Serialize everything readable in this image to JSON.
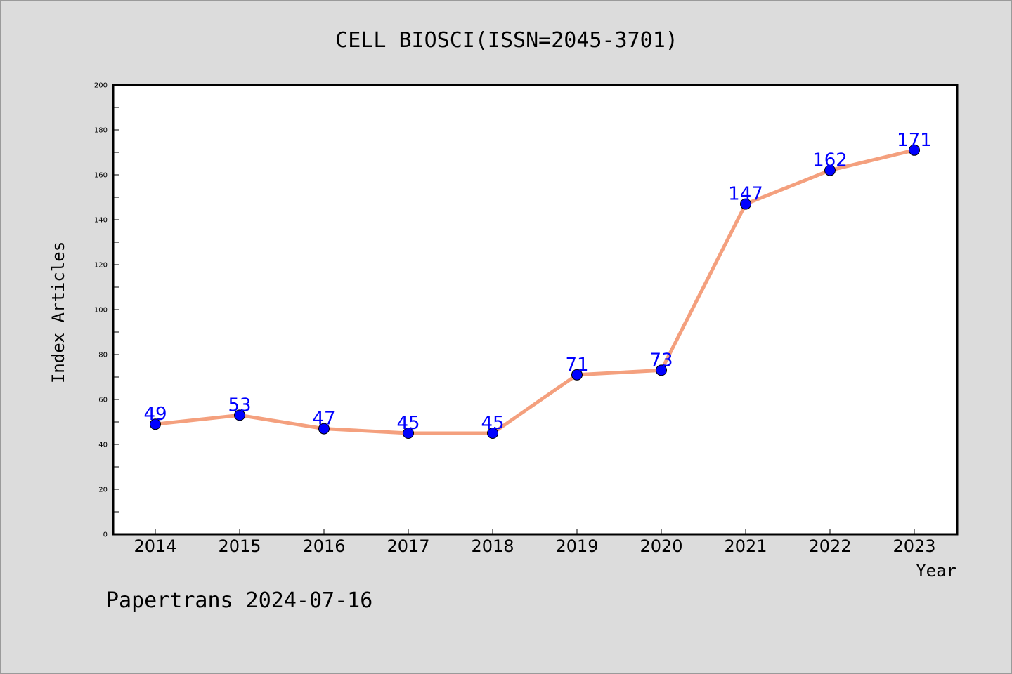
{
  "chart_data": {
    "type": "line",
    "title": "CELL BIOSCI(ISSN=2045-3701)",
    "xlabel": "Year",
    "ylabel": "Index Articles",
    "categories": [
      "2014",
      "2015",
      "2016",
      "2017",
      "2018",
      "2019",
      "2020",
      "2021",
      "2022",
      "2023"
    ],
    "values": [
      49,
      53,
      47,
      45,
      45,
      71,
      73,
      147,
      162,
      171
    ],
    "ylim": [
      0,
      200
    ],
    "yticks": [
      0,
      20,
      40,
      60,
      80,
      100,
      120,
      140,
      160,
      180,
      200
    ],
    "grid": false,
    "line_color": "#f4a07e",
    "marker_color": "#0000ff",
    "label_color": "#0000ff"
  },
  "footer": "Papertrans 2024-07-16"
}
